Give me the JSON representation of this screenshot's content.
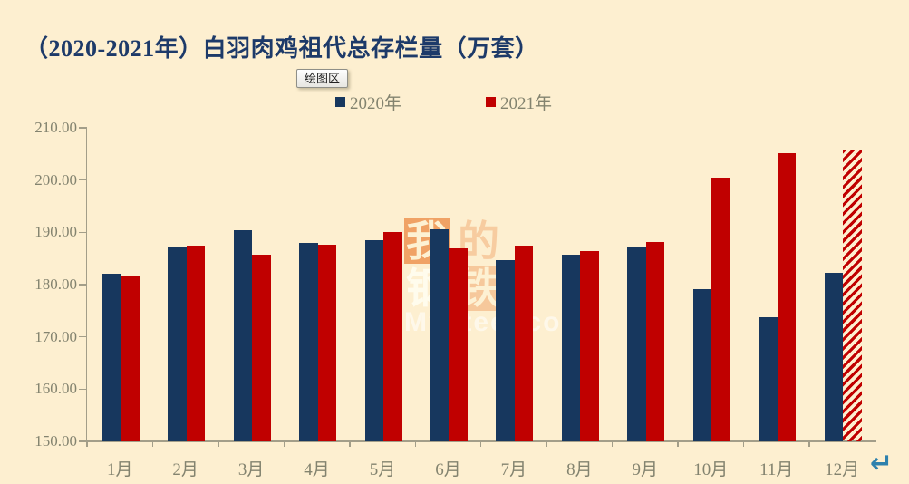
{
  "page": {
    "background_color": "#FDEFD0",
    "title": "（2020-2021年）白羽肉鸡祖代总存栏量（万套）",
    "title_color": "#1D3A69"
  },
  "tooltip": {
    "text": "绘图区"
  },
  "legend": {
    "items": [
      {
        "label": "2020年",
        "color": "#17375E"
      },
      {
        "label": "2021年",
        "color": "#C00000"
      }
    ]
  },
  "watermark": {
    "chars": [
      "我",
      "的",
      "钢",
      "铁"
    ],
    "site_text": "Mysteel.com",
    "orange": "#F0A265"
  },
  "footer": {
    "return_icon": "↵",
    "return_color": "#2E81AD"
  },
  "chart_data": {
    "type": "bar",
    "title": "（2020-2021年）白羽肉鸡祖代总存栏量（万套）",
    "categories": [
      "1月",
      "2月",
      "3月",
      "4月",
      "5月",
      "6月",
      "7月",
      "8月",
      "9月",
      "10月",
      "11月",
      "12月"
    ],
    "series": [
      {
        "name": "2020年",
        "color": "#17375E",
        "values": [
          182.1,
          187.2,
          190.4,
          188.0,
          188.5,
          190.6,
          184.6,
          185.8,
          187.2,
          179.1,
          173.8,
          182.2
        ]
      },
      {
        "name": "2021年",
        "color": "#C00000",
        "values": [
          181.8,
          187.5,
          185.8,
          187.6,
          190.1,
          187.0,
          187.5,
          186.4,
          188.2,
          200.5,
          205.2,
          205.9
        ],
        "last_bar_hatched": true
      }
    ],
    "ylim": [
      150,
      210
    ],
    "ytick_step": 10,
    "ytick_labels": [
      "150.00",
      "160.00",
      "170.00",
      "180.00",
      "190.00",
      "200.00",
      "210.00"
    ],
    "grid": false,
    "legend_position": "top",
    "axis_color": "#A39E89",
    "label_color": "#83836F"
  }
}
